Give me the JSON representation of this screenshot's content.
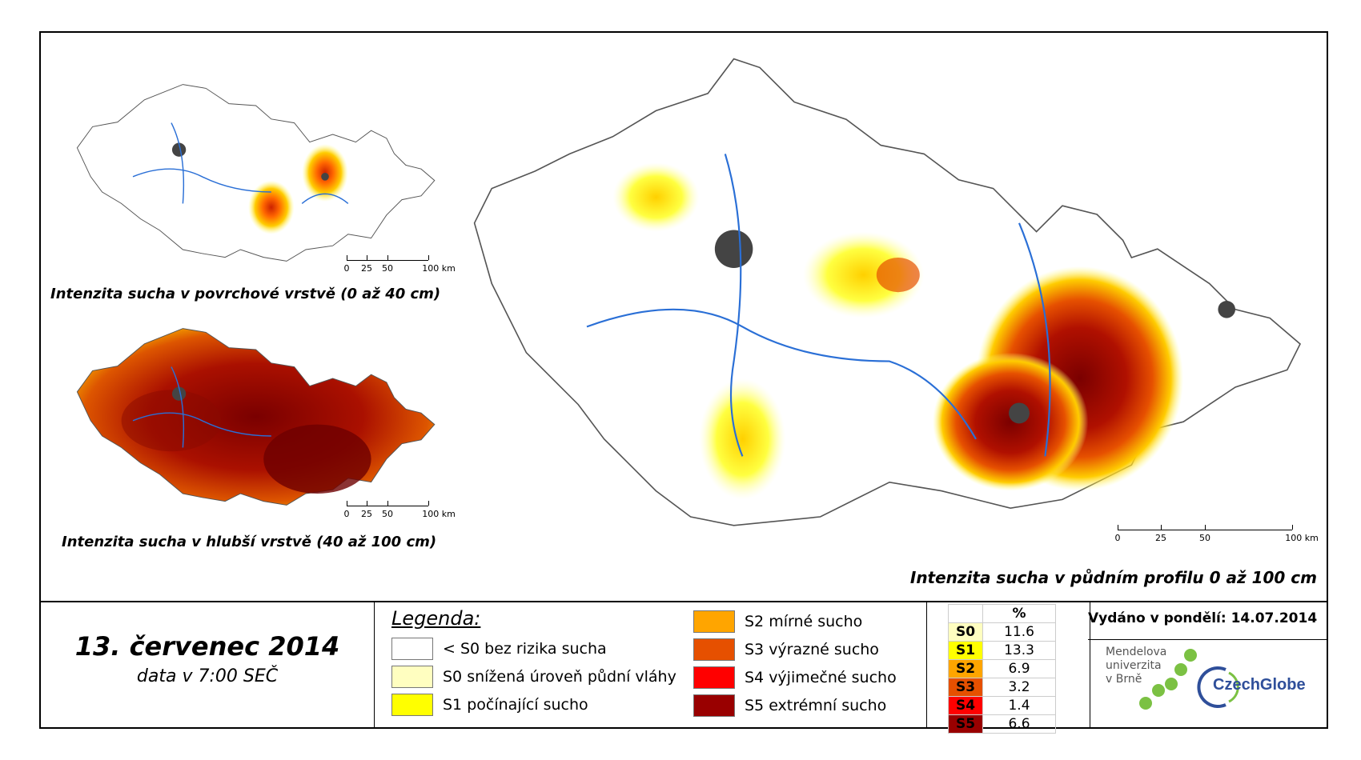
{
  "maps": {
    "surface": {
      "caption": "Intenzita sucha v povrchové vrstvě (0 až 40 cm)"
    },
    "deep": {
      "caption": "Intenzita sucha v hlubší vrstvě (40 až 100 cm)"
    },
    "profile": {
      "caption": "Intenzita sucha v půdním profilu 0 až 100 cm"
    }
  },
  "scalebar": {
    "labels": [
      "0",
      "25",
      "50",
      "100 km"
    ]
  },
  "date": {
    "title": "13. červenec 2014",
    "subtitle": "data v 7:00 SEČ"
  },
  "legend": {
    "title": "Legenda:",
    "items": [
      {
        "label": "< S0 bez rizika sucha",
        "color": "#ffffff"
      },
      {
        "label": "S0 snížená úroveň půdní vláhy",
        "color": "#fffec0"
      },
      {
        "label": "S1 počínající sucho",
        "color": "#ffff00"
      },
      {
        "label": "S2 mírné sucho",
        "color": "#ffa500"
      },
      {
        "label": "S3 výrazné sucho",
        "color": "#e65000"
      },
      {
        "label": "S4 výjimečné sucho",
        "color": "#ff0000"
      },
      {
        "label": "S5 extrémní sucho",
        "color": "#990000"
      }
    ]
  },
  "percent_table": {
    "header": "%",
    "rows": [
      {
        "key": "S0",
        "value": "11.6",
        "color": "#fffec0"
      },
      {
        "key": "S1",
        "value": "13.3",
        "color": "#ffff00"
      },
      {
        "key": "S2",
        "value": "6.9",
        "color": "#ffa500"
      },
      {
        "key": "S3",
        "value": "3.2",
        "color": "#e65000"
      },
      {
        "key": "S4",
        "value": "1.4",
        "color": "#ff0000"
      },
      {
        "key": "S5",
        "value": "6.6",
        "color": "#990000"
      }
    ]
  },
  "issued": "Vydáno v pondělí: 14.07.2014",
  "logos": {
    "mendel": [
      "Mendelova",
      "univerzita",
      "v Brně"
    ],
    "czechglobe": "CzechGlobe"
  }
}
